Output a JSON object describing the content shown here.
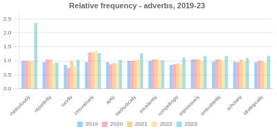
{
  "chart_data": {
    "type": "bar",
    "title": "Relative frequency - adverbs, 2019-23",
    "categories": [
      "meticulously",
      "reportedly",
      "lucidly",
      "innovatively",
      "aptly",
      "methodically",
      "excellently",
      "compellingly",
      "impressively",
      "undoubtedly",
      "scholarly",
      "strategically"
    ],
    "series": [
      {
        "name": "2019",
        "values": [
          1.0,
          0.95,
          0.85,
          0.95,
          0.95,
          1.0,
          1.0,
          0.85,
          1.05,
          0.97,
          0.97,
          0.95
        ]
      },
      {
        "name": "2020",
        "values": [
          1.0,
          1.05,
          0.75,
          1.3,
          0.88,
          1.0,
          1.05,
          0.88,
          1.05,
          1.05,
          0.95,
          1.0
        ]
      },
      {
        "name": "2021",
        "values": [
          1.0,
          1.05,
          1.0,
          1.3,
          0.92,
          1.0,
          1.05,
          0.9,
          1.05,
          1.05,
          1.05,
          1.0
        ]
      },
      {
        "name": "2022",
        "values": [
          1.0,
          0.93,
          0.8,
          1.38,
          0.9,
          1.05,
          1.02,
          0.88,
          1.0,
          0.97,
          0.97,
          0.95
        ]
      },
      {
        "name": "2023",
        "values": [
          2.35,
          0.93,
          1.03,
          1.28,
          1.03,
          1.27,
          1.02,
          1.12,
          1.17,
          1.17,
          1.1,
          1.18
        ]
      }
    ],
    "ylim": [
      0,
      2.7
    ],
    "yticks": [
      {
        "value": 0,
        "label": "0.0"
      },
      0.5,
      {
        "value": 1.0,
        "label": "1.0"
      },
      1.5,
      {
        "value": 2.0,
        "label": "2.0"
      },
      2.5
    ],
    "grid": true,
    "legend": "bottom"
  }
}
